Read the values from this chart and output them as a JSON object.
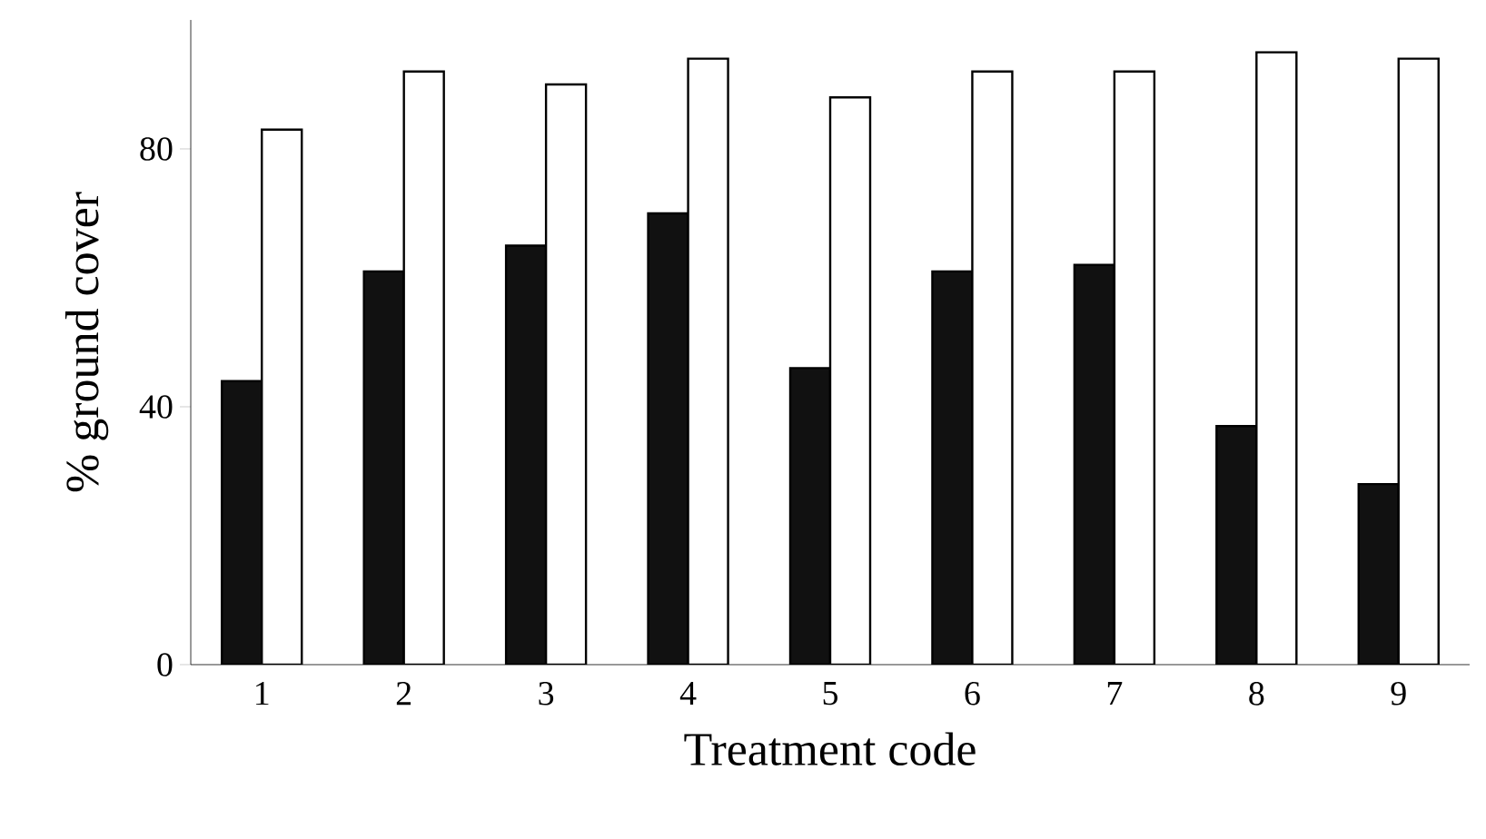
{
  "chart_data": {
    "type": "bar",
    "xlabel": "Treatment code",
    "ylabel": "% ground cover",
    "categories": [
      "1",
      "2",
      "3",
      "4",
      "5",
      "6",
      "7",
      "8",
      "9"
    ],
    "series": [
      {
        "color": "#111111",
        "values": [
          44,
          61,
          65,
          70,
          46,
          61,
          62,
          37,
          28
        ]
      },
      {
        "color": "#ffffff",
        "values": [
          83,
          92,
          90,
          94,
          88,
          92,
          92,
          95,
          94
        ]
      }
    ],
    "ylim": [
      0,
      100
    ],
    "yticks": [
      0,
      40,
      80
    ],
    "grid": false
  }
}
